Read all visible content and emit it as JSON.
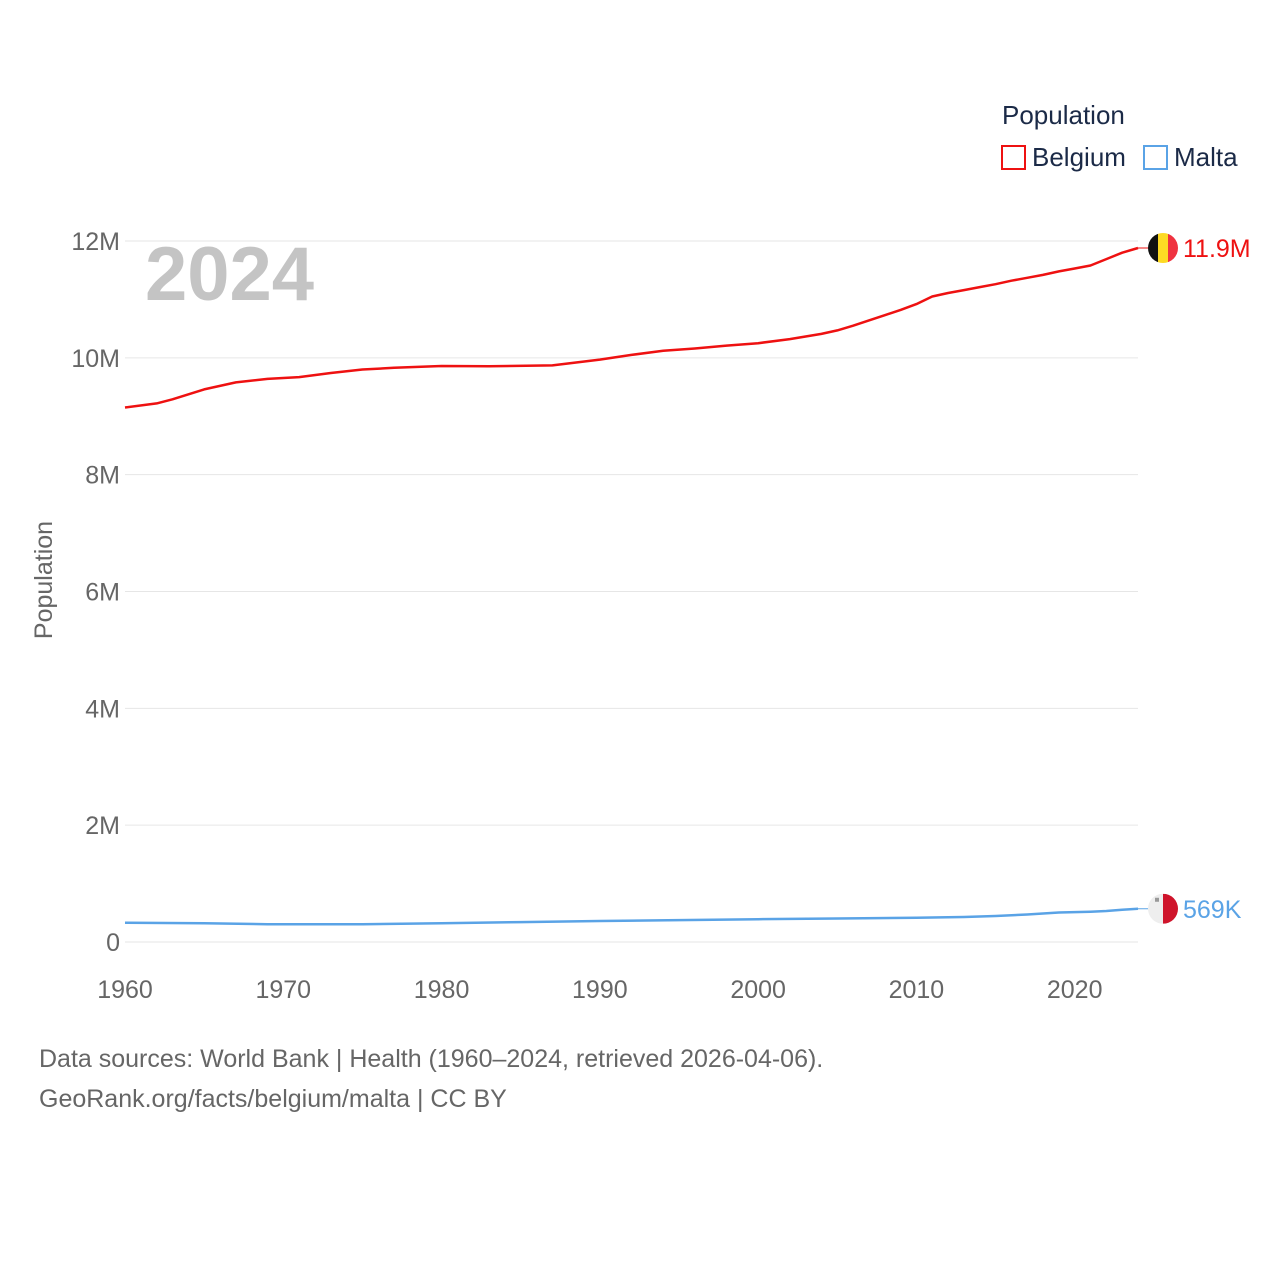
{
  "chart_data": {
    "type": "line",
    "ylabel": "Population",
    "yticks": [
      {
        "value": 0,
        "label": "0"
      },
      {
        "value": 2000000,
        "label": "2M"
      },
      {
        "value": 4000000,
        "label": "4M"
      },
      {
        "value": 6000000,
        "label": "6M"
      },
      {
        "value": 8000000,
        "label": "8M"
      },
      {
        "value": 10000000,
        "label": "10M"
      },
      {
        "value": 12000000,
        "label": "12M"
      }
    ],
    "xticks": [
      1960,
      1970,
      1980,
      1990,
      2000,
      2010,
      2020
    ],
    "xlim": [
      1960,
      2024
    ],
    "ylim": [
      0,
      12000000
    ],
    "year_label": "2024",
    "legend": {
      "title": "Population",
      "position": "top-right"
    },
    "series": [
      {
        "name": "Belgium",
        "color": "#ee1111",
        "end_label": "11.9M",
        "flag": "belgium-flag",
        "points": [
          [
            1960,
            9150000
          ],
          [
            1962,
            9220000
          ],
          [
            1963,
            9290000
          ],
          [
            1965,
            9460000
          ],
          [
            1967,
            9580000
          ],
          [
            1969,
            9640000
          ],
          [
            1971,
            9670000
          ],
          [
            1973,
            9740000
          ],
          [
            1975,
            9800000
          ],
          [
            1977,
            9830000
          ],
          [
            1980,
            9860000
          ],
          [
            1983,
            9855000
          ],
          [
            1987,
            9870000
          ],
          [
            1990,
            9970000
          ],
          [
            1992,
            10050000
          ],
          [
            1994,
            10120000
          ],
          [
            1996,
            10160000
          ],
          [
            1998,
            10210000
          ],
          [
            2000,
            10250000
          ],
          [
            2002,
            10320000
          ],
          [
            2004,
            10410000
          ],
          [
            2005,
            10470000
          ],
          [
            2006,
            10550000
          ],
          [
            2007,
            10640000
          ],
          [
            2008,
            10730000
          ],
          [
            2009,
            10820000
          ],
          [
            2010,
            10920000
          ],
          [
            2011,
            11050000
          ],
          [
            2012,
            11110000
          ],
          [
            2013,
            11160000
          ],
          [
            2014,
            11210000
          ],
          [
            2015,
            11260000
          ],
          [
            2016,
            11320000
          ],
          [
            2017,
            11370000
          ],
          [
            2018,
            11420000
          ],
          [
            2019,
            11480000
          ],
          [
            2020,
            11530000
          ],
          [
            2021,
            11580000
          ],
          [
            2022,
            11690000
          ],
          [
            2023,
            11800000
          ],
          [
            2024,
            11880000
          ]
        ]
      },
      {
        "name": "Malta",
        "color": "#5aa3e6",
        "end_label": "569K",
        "flag": "malta-flag",
        "points": [
          [
            1960,
            330000
          ],
          [
            1965,
            320000
          ],
          [
            1969,
            305000
          ],
          [
            1975,
            305000
          ],
          [
            1980,
            320000
          ],
          [
            1985,
            340000
          ],
          [
            1990,
            360000
          ],
          [
            1995,
            375000
          ],
          [
            2000,
            390000
          ],
          [
            2005,
            403000
          ],
          [
            2010,
            414000
          ],
          [
            2013,
            428000
          ],
          [
            2015,
            445000
          ],
          [
            2017,
            470000
          ],
          [
            2019,
            505000
          ],
          [
            2021,
            518000
          ],
          [
            2022,
            531000
          ],
          [
            2023,
            553000
          ],
          [
            2024,
            569000
          ]
        ]
      }
    ]
  },
  "footer": {
    "sources": "Data sources: World Bank | Health (1960–2024, retrieved 2026-04-06).",
    "credit": "GeoRank.org/facts/belgium/malta | CC BY"
  }
}
